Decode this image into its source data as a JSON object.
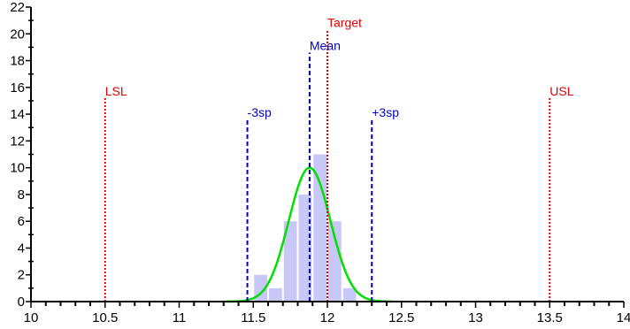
{
  "chart_data": {
    "type": "bar",
    "title": "",
    "xlabel": "",
    "ylabel": "",
    "xlim": [
      10,
      14
    ],
    "ylim": [
      0,
      22
    ],
    "grid": false,
    "x_ticks": [
      "10",
      "10.5",
      "11",
      "11.5",
      "12",
      "12.5",
      "13",
      "13.5",
      "14"
    ],
    "y_ticks": [
      "0",
      "2",
      "4",
      "6",
      "8",
      "10",
      "12",
      "14",
      "16",
      "18",
      "20",
      "22"
    ],
    "histogram": {
      "bin_width": 0.1,
      "bins": [
        {
          "x": 11.55,
          "count": 2
        },
        {
          "x": 11.65,
          "count": 1
        },
        {
          "x": 11.75,
          "count": 6
        },
        {
          "x": 11.85,
          "count": 8
        },
        {
          "x": 11.95,
          "count": 11
        },
        {
          "x": 12.05,
          "count": 6
        },
        {
          "x": 12.15,
          "count": 1
        }
      ],
      "color": "#c8c8f8"
    },
    "normal_curve": {
      "mean": 11.88,
      "sd": 0.14,
      "peak": 10,
      "color": "#00e000"
    },
    "reference_lines": [
      {
        "label": "LSL",
        "x": 10.5,
        "top": 15.2,
        "color": "#e00000",
        "style": "dotted"
      },
      {
        "label": "USL",
        "x": 13.5,
        "top": 15.2,
        "color": "#e00000",
        "style": "dotted"
      },
      {
        "label": "Target",
        "x": 12.0,
        "top": 20.3,
        "color": "#e00000",
        "style": "dotted"
      },
      {
        "label": "Mean",
        "x": 11.88,
        "top": 18.6,
        "color": "#0000cc",
        "style": "dashed"
      },
      {
        "label": "-3sp",
        "x": 11.46,
        "top": 13.6,
        "color": "#0000cc",
        "style": "dashed"
      },
      {
        "label": "+3sp",
        "x": 12.3,
        "top": 13.6,
        "color": "#0000cc",
        "style": "dashed"
      }
    ]
  }
}
